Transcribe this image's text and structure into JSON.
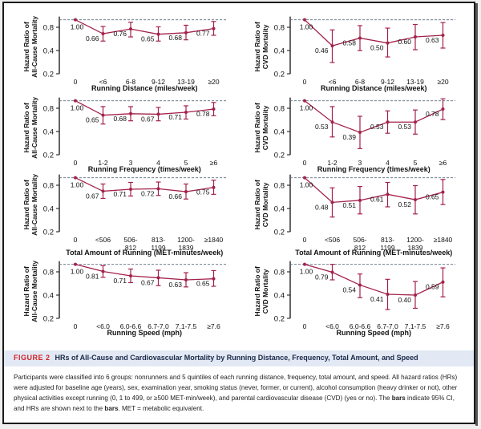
{
  "figure": {
    "label": "FIGURE 2",
    "title": "HRs of All-Cause and Cardiovascular Mortality by Running Distance, Frequency, Total Amount, and Speed",
    "caption_parts": [
      {
        "text": "Participants were classified into 6 groups: nonrunners and 5 quintiles of each running distance, frequency, total amount, and speed. All hazard ratios (HRs) were adjusted for baseline age (years), sex, examination year, smoking status (never, former, or current), alcohol consumption (heavy drinker or not), other physical activities except running (0, 1 to 499, or ≥500 MET-min/week), and parental cardiovascular disease (CVD) (yes or no). The ",
        "bold": false
      },
      {
        "text": "bars",
        "bold": true
      },
      {
        "text": " indicate 95% CI, and HRs are shown next to the ",
        "bold": false
      },
      {
        "text": "bars",
        "bold": true
      },
      {
        "text": ". MET = metabolic equivalent.",
        "bold": false
      }
    ]
  },
  "colors": {
    "series": "#a3224a",
    "reference_line": "#5a6a80",
    "axis": "#111111",
    "caption_label": "#d2232a",
    "caption_bar_bg": "#e3e9f4"
  },
  "chart_data": [
    {
      "type": "line",
      "id": "allcause-distance",
      "title": "",
      "xlabel": "Running Distance (miles/week)",
      "ylabel": [
        "Hazard Ratio of",
        "All-Cause Mortality"
      ],
      "yscale": "log",
      "ylim": [
        0.2,
        1.0
      ],
      "yticks": [
        0.2,
        0.4,
        0.8
      ],
      "reference_line": 1.0,
      "categories": [
        [
          "0"
        ],
        [
          "<6"
        ],
        [
          "6-8"
        ],
        [
          "9-12"
        ],
        [
          "13-19"
        ],
        [
          "≥20"
        ]
      ],
      "values": [
        1.0,
        0.66,
        0.76,
        0.65,
        0.68,
        0.77
      ],
      "ci_low": [
        null,
        0.53,
        0.6,
        0.53,
        0.55,
        0.63
      ],
      "ci_high": [
        null,
        0.82,
        0.93,
        0.81,
        0.85,
        0.95
      ],
      "labels": [
        "1.00",
        "0.66",
        "0.76",
        "0.65",
        "0.68",
        "0.77"
      ]
    },
    {
      "type": "line",
      "id": "cvd-distance",
      "title": "",
      "xlabel": "Running Distance (miles/week)",
      "ylabel": [
        "Hazard Ratio of",
        "CVD Mortality"
      ],
      "yscale": "log",
      "ylim": [
        0.2,
        1.0
      ],
      "yticks": [
        0.2,
        0.4,
        0.8
      ],
      "reference_line": 1.0,
      "categories": [
        [
          "0"
        ],
        [
          "<6"
        ],
        [
          "6-8"
        ],
        [
          "9-12"
        ],
        [
          "13-19"
        ],
        [
          "≥20"
        ]
      ],
      "values": [
        1.0,
        0.46,
        0.58,
        0.5,
        0.6,
        0.63
      ],
      "ci_low": [
        null,
        0.28,
        0.4,
        0.33,
        0.41,
        0.43
      ],
      "ci_high": [
        null,
        0.74,
        0.84,
        0.78,
        0.87,
        0.92
      ],
      "labels": [
        "1.00",
        "0.46",
        "0.58",
        "0.50",
        "0.60",
        "0.63"
      ]
    },
    {
      "type": "line",
      "id": "allcause-frequency",
      "title": "",
      "xlabel": "Running Frequency (times/week)",
      "ylabel": [
        "Hazard Ratio of",
        "All-Cause Mortality"
      ],
      "yscale": "log",
      "ylim": [
        0.2,
        1.0
      ],
      "yticks": [
        0.2,
        0.4,
        0.8
      ],
      "reference_line": 1.0,
      "categories": [
        [
          "0"
        ],
        [
          "1-2"
        ],
        [
          "3"
        ],
        [
          "4"
        ],
        [
          "5"
        ],
        [
          "≥6"
        ]
      ],
      "values": [
        1.0,
        0.65,
        0.68,
        0.67,
        0.71,
        0.78
      ],
      "ci_low": [
        null,
        0.5,
        0.55,
        0.55,
        0.58,
        0.64
      ],
      "ci_high": [
        null,
        0.84,
        0.84,
        0.82,
        0.86,
        0.95
      ],
      "labels": [
        "1.00",
        "0.65",
        "0.68",
        "0.67",
        "0.71",
        "0.78"
      ]
    },
    {
      "type": "line",
      "id": "cvd-frequency",
      "title": "",
      "xlabel": "Running Frequency (times/week)",
      "ylabel": [
        "Hazard Ratio of",
        "CVD Mortality"
      ],
      "yscale": "log",
      "ylim": [
        0.2,
        1.0
      ],
      "yticks": [
        0.2,
        0.4,
        0.8
      ],
      "reference_line": 1.0,
      "categories": [
        [
          "0"
        ],
        [
          "1-2"
        ],
        [
          "3"
        ],
        [
          "4"
        ],
        [
          "5"
        ],
        [
          "≥6"
        ]
      ],
      "values": [
        1.0,
        0.53,
        0.39,
        0.53,
        0.53,
        0.78
      ],
      "ci_low": [
        null,
        0.34,
        0.24,
        0.38,
        0.37,
        0.57
      ],
      "ci_high": [
        null,
        0.84,
        0.63,
        0.74,
        0.76,
        1.06
      ],
      "labels": [
        "1.00",
        "0.53",
        "0.39",
        "0.53",
        "0.53",
        "0.78"
      ]
    },
    {
      "type": "line",
      "id": "allcause-total",
      "title": "",
      "xlabel": "Total Amount of Running (MET-minutes/week)",
      "ylabel": [
        "Hazard Ratio of",
        "All-Cause Mortality"
      ],
      "yscale": "log",
      "ylim": [
        0.2,
        1.0
      ],
      "yticks": [
        0.2,
        0.4,
        0.8
      ],
      "reference_line": 1.0,
      "categories": [
        [
          "0"
        ],
        [
          "<506"
        ],
        [
          "506-",
          "812"
        ],
        [
          "813-",
          "1199"
        ],
        [
          "1200-",
          "1839"
        ],
        [
          "≥1840"
        ]
      ],
      "values": [
        1.0,
        0.67,
        0.71,
        0.72,
        0.66,
        0.75
      ],
      "ci_low": [
        null,
        0.54,
        0.58,
        0.59,
        0.53,
        0.61
      ],
      "ci_high": [
        null,
        0.83,
        0.87,
        0.88,
        0.83,
        0.93
      ],
      "labels": [
        "1.00",
        "0.67",
        "0.71",
        "0.72",
        "0.66",
        "0.75"
      ]
    },
    {
      "type": "line",
      "id": "cvd-total",
      "title": "",
      "xlabel": "Total Amount of Running (MET-minutes/week)",
      "ylabel": [
        "Hazard Ratio of",
        "CVD Mortality"
      ],
      "yscale": "log",
      "ylim": [
        0.2,
        1.0
      ],
      "yticks": [
        0.2,
        0.4,
        0.8
      ],
      "reference_line": 1.0,
      "categories": [
        [
          "0"
        ],
        [
          "<506"
        ],
        [
          "506-",
          "812"
        ],
        [
          "813-",
          "1199"
        ],
        [
          "1200-",
          "1839"
        ],
        [
          "≥1840"
        ]
      ],
      "values": [
        1.0,
        0.48,
        0.51,
        0.61,
        0.52,
        0.65
      ],
      "ci_low": [
        null,
        0.31,
        0.34,
        0.42,
        0.34,
        0.45
      ],
      "ci_high": [
        null,
        0.74,
        0.77,
        0.87,
        0.79,
        0.95
      ],
      "labels": [
        "1.00",
        "0.48",
        "0.51",
        "0.61",
        "0.52",
        "0.65"
      ]
    },
    {
      "type": "line",
      "id": "allcause-speed",
      "title": "",
      "xlabel": "Running Speed (mph)",
      "ylabel": [
        "Hazard Ratio of",
        "All-Cause Mortality"
      ],
      "yscale": "log",
      "ylim": [
        0.2,
        1.0
      ],
      "yticks": [
        0.2,
        0.4,
        0.8
      ],
      "reference_line": 1.0,
      "categories": [
        [
          "0"
        ],
        [
          "<6.0"
        ],
        [
          "6.0-6.6"
        ],
        [
          "6.7-7.0"
        ],
        [
          "7.1-7.5"
        ],
        [
          "≥7.6"
        ]
      ],
      "values": [
        1.0,
        0.81,
        0.71,
        0.67,
        0.63,
        0.65
      ],
      "ci_low": [
        null,
        0.68,
        0.58,
        0.53,
        0.51,
        0.52
      ],
      "ci_high": [
        null,
        0.96,
        0.87,
        0.84,
        0.78,
        0.83
      ],
      "labels": [
        "1.00",
        "0.81",
        "0.71",
        "0.67",
        "0.63",
        "0.65"
      ]
    },
    {
      "type": "line",
      "id": "cvd-speed",
      "title": "",
      "xlabel": "Running Speed (mph)",
      "ylabel": [
        "Hazard Ratio of",
        "CVD Mortality"
      ],
      "yscale": "log",
      "ylim": [
        0.2,
        1.0
      ],
      "yticks": [
        0.2,
        0.4,
        0.8
      ],
      "reference_line": 1.0,
      "categories": [
        [
          "0"
        ],
        [
          "<6.0"
        ],
        [
          "6.0-6.6"
        ],
        [
          "6.7-7.0"
        ],
        [
          "7.1-7.5"
        ],
        [
          "≥7.6"
        ]
      ],
      "values": [
        1.0,
        0.79,
        0.54,
        0.41,
        0.4,
        0.59
      ],
      "ci_low": [
        null,
        0.63,
        0.37,
        0.26,
        0.27,
        0.38
      ],
      "ci_high": [
        null,
        1.0,
        0.75,
        0.64,
        0.6,
        0.9
      ],
      "labels": [
        "1.00",
        "0.79",
        "0.54",
        "0.41",
        "0.40",
        "0.59"
      ]
    }
  ]
}
